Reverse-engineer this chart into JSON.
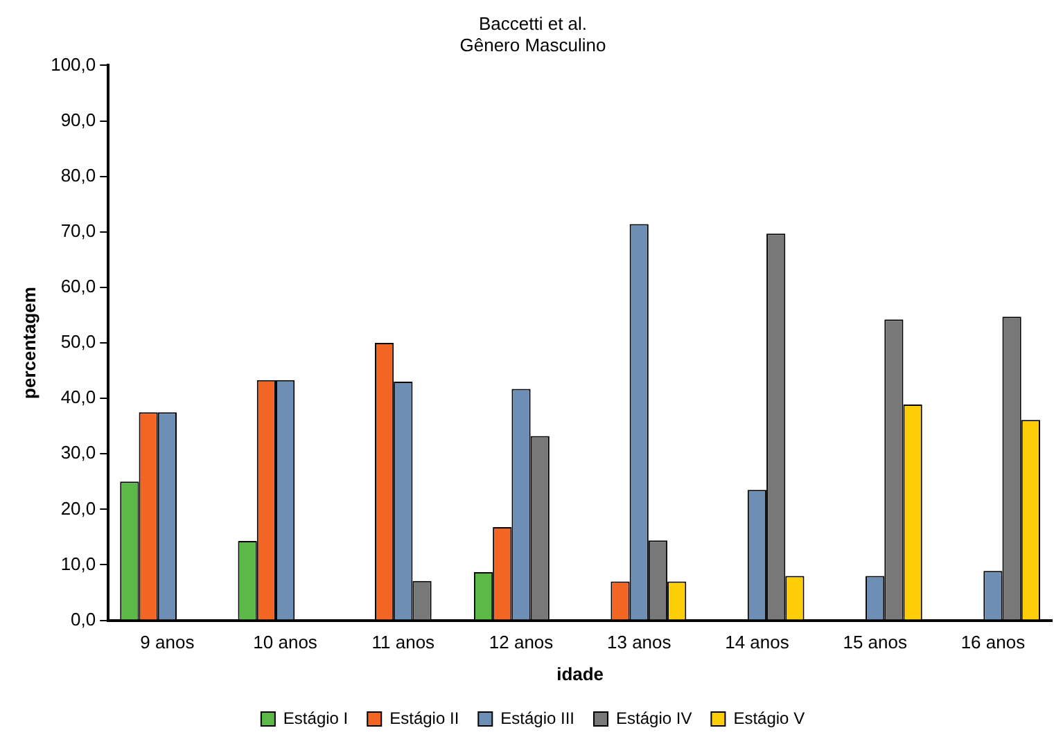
{
  "chart_data": {
    "type": "bar",
    "title": "Baccetti et al.",
    "subtitle": "Gênero Masculino",
    "xlabel": "idade",
    "ylabel": "percentagem",
    "categories": [
      "9 anos",
      "10 anos",
      "11 anos",
      "12 anos",
      "13 anos",
      "14 anos",
      "15 anos",
      "16 anos"
    ],
    "series": [
      {
        "name": "Estágio I",
        "color": "#5cb947",
        "values": [
          25.0,
          14.3,
          null,
          8.7,
          null,
          null,
          null,
          null
        ]
      },
      {
        "name": "Estágio II",
        "color": "#f26522",
        "values": [
          37.5,
          43.3,
          50.0,
          16.8,
          7.0,
          null,
          null,
          null
        ]
      },
      {
        "name": "Estágio III",
        "color": "#6d8fb5",
        "values": [
          37.5,
          43.3,
          43.0,
          41.7,
          71.4,
          23.5,
          8.0,
          8.9
        ]
      },
      {
        "name": "Estágio IV",
        "color": "#787878",
        "values": [
          null,
          null,
          7.1,
          33.2,
          14.4,
          69.7,
          54.2,
          54.7
        ]
      },
      {
        "name": "Estágio V",
        "color": "#fdcd08",
        "values": [
          null,
          null,
          null,
          null,
          7.0,
          8.0,
          38.9,
          36.1
        ]
      }
    ],
    "ylim": [
      0,
      100
    ],
    "yticks": [
      {
        "value": 0,
        "label": "0,0"
      },
      {
        "value": 10,
        "label": "10,0"
      },
      {
        "value": 20,
        "label": "20,0"
      },
      {
        "value": 30,
        "label": "30,0"
      },
      {
        "value": 40,
        "label": "40,0"
      },
      {
        "value": 50,
        "label": "50,0"
      },
      {
        "value": 60,
        "label": "60,0"
      },
      {
        "value": 70,
        "label": "70,0"
      },
      {
        "value": 80,
        "label": "80,0"
      },
      {
        "value": 90,
        "label": "90,0"
      },
      {
        "value": 100,
        "label": "100,0"
      }
    ],
    "grid": false,
    "legend": "bottom"
  }
}
